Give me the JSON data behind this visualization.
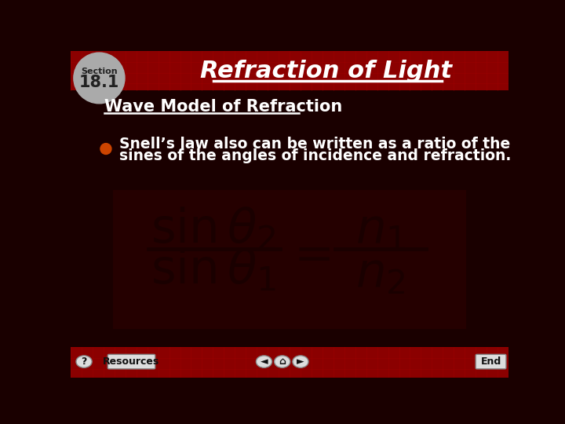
{
  "bg_color": "#1a0000",
  "header_bg": "#8b0000",
  "header_title": "Refraction of Light",
  "section_label": "Section",
  "section_number": "18.1",
  "subtitle": "Wave Model of Refraction",
  "bullet_text_line1": "Snell’s law also can be written as a ratio of the",
  "bullet_text_line2": "sines of the angles of incidence and refraction.",
  "bullet_color": "#cc4400",
  "footer_bg": "#8b0000",
  "title_color": "#ffffff",
  "subtitle_color": "#ffffff",
  "text_color": "#ffffff",
  "formula_dark": "#1a0000",
  "grid_color": "#aa0000",
  "badge_color": "#aaaaaa",
  "badge_text_color": "#222222",
  "btn_face": "#dddddd",
  "btn_edge": "#888888",
  "btn_text": "#111111"
}
